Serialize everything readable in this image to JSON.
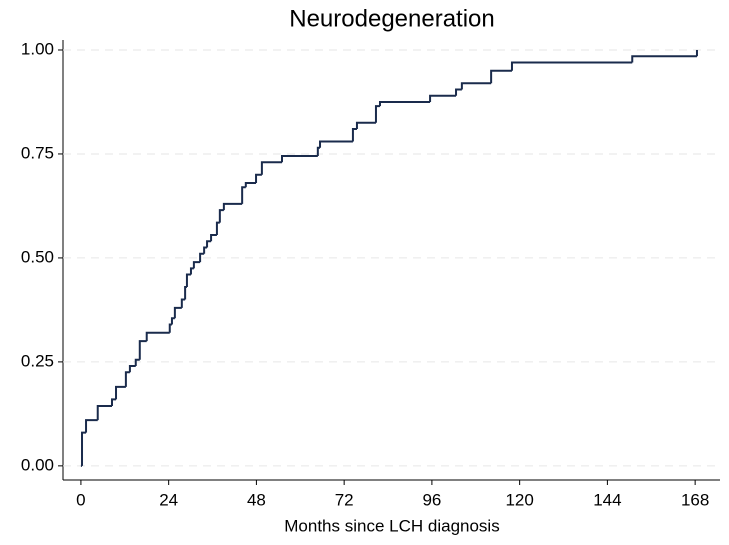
{
  "chart_data": {
    "type": "step",
    "title": "Neurodegeneration",
    "x_label": "Months since LCH diagnosis",
    "series": [
      {
        "color": "#1a2b4c",
        "x": [
          0,
          0.3,
          1.4,
          4.6,
          8.5,
          9.6,
          12.3,
          13.4,
          15.0,
          16.1,
          18.0,
          24.3,
          24.9,
          25.7,
          27.6,
          28.5,
          29.0,
          30.1,
          30.9,
          32.6,
          33.7,
          34.5,
          35.6,
          37.2,
          38.0,
          39.1,
          44.1,
          45.1,
          47.9,
          49.5,
          55.0,
          64.8,
          65.4,
          74.4,
          75.5,
          80.7,
          81.8,
          95.5,
          102.6,
          104.2,
          112.2,
          117.9,
          150.8,
          168.5
        ],
        "values": [
          0,
          0.08,
          0.11,
          0.144,
          0.16,
          0.19,
          0.225,
          0.24,
          0.255,
          0.3,
          0.32,
          0.34,
          0.355,
          0.38,
          0.4,
          0.43,
          0.46,
          0.475,
          0.49,
          0.51,
          0.525,
          0.54,
          0.555,
          0.585,
          0.615,
          0.63,
          0.67,
          0.68,
          0.7,
          0.73,
          0.745,
          0.765,
          0.78,
          0.81,
          0.825,
          0.865,
          0.875,
          0.89,
          0.905,
          0.92,
          0.95,
          0.97,
          0.985,
          1.0
        ]
      }
    ],
    "xlim": [
      -4.9,
      174.8
    ],
    "xticks": [
      0,
      24,
      48,
      72,
      96,
      120,
      144,
      168
    ],
    "ylim": [
      -0.034,
      1.024
    ],
    "yticks": [
      {
        "value": 0,
        "label": "0.00"
      },
      {
        "value": 0.25,
        "label": "0.25"
      },
      {
        "value": 0.5,
        "label": "0.50"
      },
      {
        "value": 0.75,
        "label": "0.75"
      },
      {
        "value": 1,
        "label": "1.00"
      }
    ],
    "grid": true
  }
}
